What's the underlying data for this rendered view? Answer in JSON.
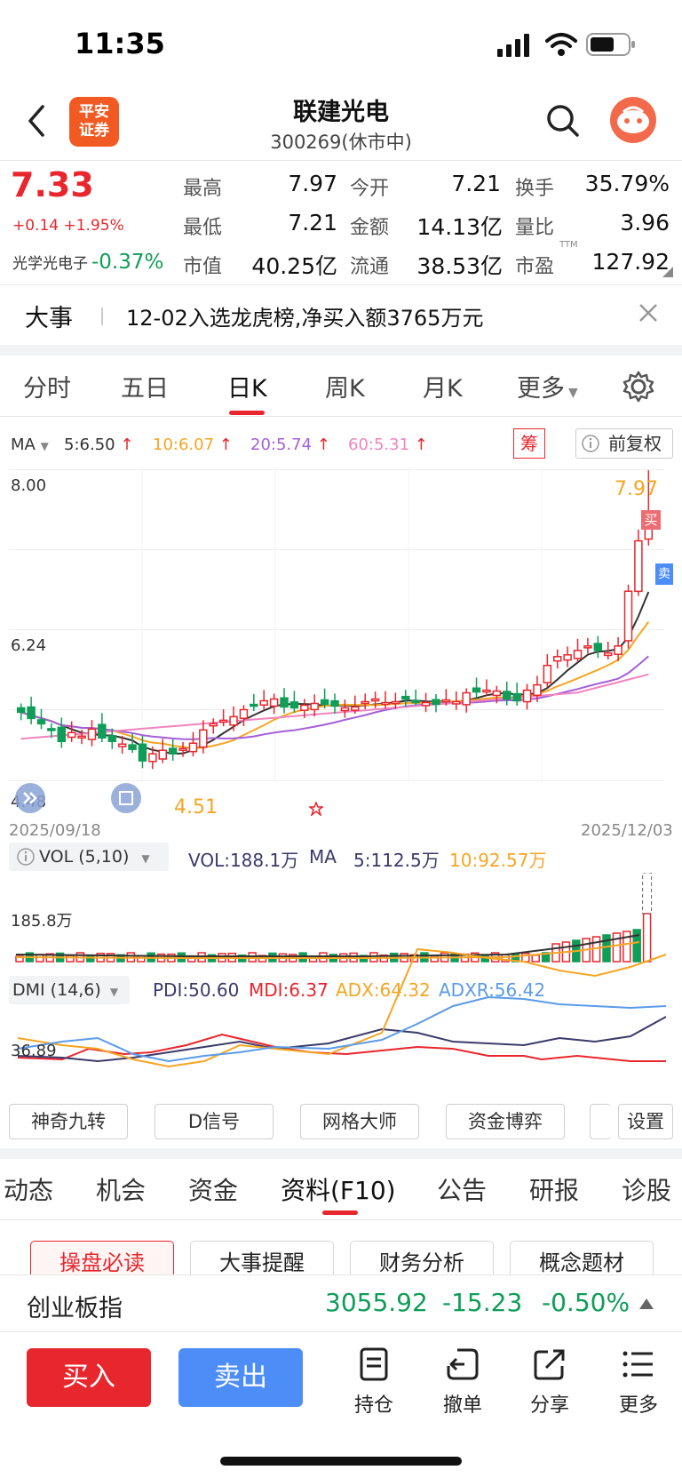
{
  "status_bar": {
    "time": "11:35"
  },
  "header": {
    "back_icon": "chevron-left-icon",
    "logo_line1": "平安",
    "logo_line2": "证券",
    "stock_name": "联建光电",
    "stock_code_status": "300269(休市中)"
  },
  "quote": {
    "price": "7.33",
    "change": "+0.14 +1.95%",
    "sector_name": "光学光电子",
    "sector_change": "-0.37%",
    "stats": [
      {
        "label": "最高",
        "value": "7.97"
      },
      {
        "label": "今开",
        "value": "7.21"
      },
      {
        "label": "换手",
        "value": "35.79%"
      },
      {
        "label": "最低",
        "value": "7.21"
      },
      {
        "label": "金额",
        "value": "14.13亿"
      },
      {
        "label": "量比",
        "value": "3.96"
      },
      {
        "label": "市值",
        "value": "40.25亿"
      },
      {
        "label": "流通",
        "value": "38.53亿"
      },
      {
        "label": "市盈",
        "value": "127.92",
        "sup": "TTM"
      }
    ]
  },
  "news": {
    "tag": "大事",
    "text": "12-02入选龙虎榜,净买入额3765万元"
  },
  "period_tabs": [
    "分时",
    "五日",
    "日K",
    "周K",
    "月K",
    "更多"
  ],
  "active_period": "日K",
  "ma_legend": {
    "label": "MA",
    "items": [
      {
        "text": "5:6.50",
        "color": "#333333"
      },
      {
        "text": "10:6.07",
        "color": "#f5a623"
      },
      {
        "text": "20:5.74",
        "color": "#a35fd8"
      },
      {
        "text": "60:5.31",
        "color": "#f084c0"
      }
    ],
    "chip_label": "筹",
    "adjust_label": "前复权"
  },
  "kline": {
    "y_high": "8.00",
    "y_mid": "6.24",
    "y_low": "4.48",
    "max_label": "7.97",
    "min_label": "4.51",
    "date_start": "2025/09/18",
    "date_end": "2025/12/03",
    "buy_mark": "买",
    "sell_mark": "卖"
  },
  "volume": {
    "indicator": "VOL (5,10)",
    "vol": "VOL:188.1万",
    "ma_label": "MA",
    "ma5": "5:112.5万",
    "ma10": "10:92.57万",
    "y_label": "185.8万"
  },
  "dmi": {
    "indicator": "DMI (14,6)",
    "pdi": "PDI:50.60",
    "mdi": "MDI:6.37",
    "adx": "ADX:64.32",
    "adxr": "ADXR:56.42",
    "y_label": "36.89"
  },
  "tools": [
    "神奇九转",
    "D信号",
    "网格大师",
    "资金博弈",
    "设置"
  ],
  "f10_tabs": [
    "动态",
    "机会",
    "资金",
    "资料(F10)",
    "公告",
    "研报",
    "诊股"
  ],
  "active_f10_tab": "资料(F10)",
  "f10_buttons": [
    "操盘必读",
    "大事提醒",
    "财务分析",
    "概念题材"
  ],
  "index_bar": {
    "name": "创业板指",
    "value": "3055.92",
    "change": "-15.23",
    "pct": "-0.50%"
  },
  "bottom_actions": {
    "buy": "买入",
    "sell": "卖出",
    "items": [
      "持仓",
      "撤单",
      "分享",
      "更多"
    ]
  },
  "colors": {
    "up": "#e8262d",
    "down": "#0f9d58",
    "sell_blue": "#4d8df7"
  }
}
